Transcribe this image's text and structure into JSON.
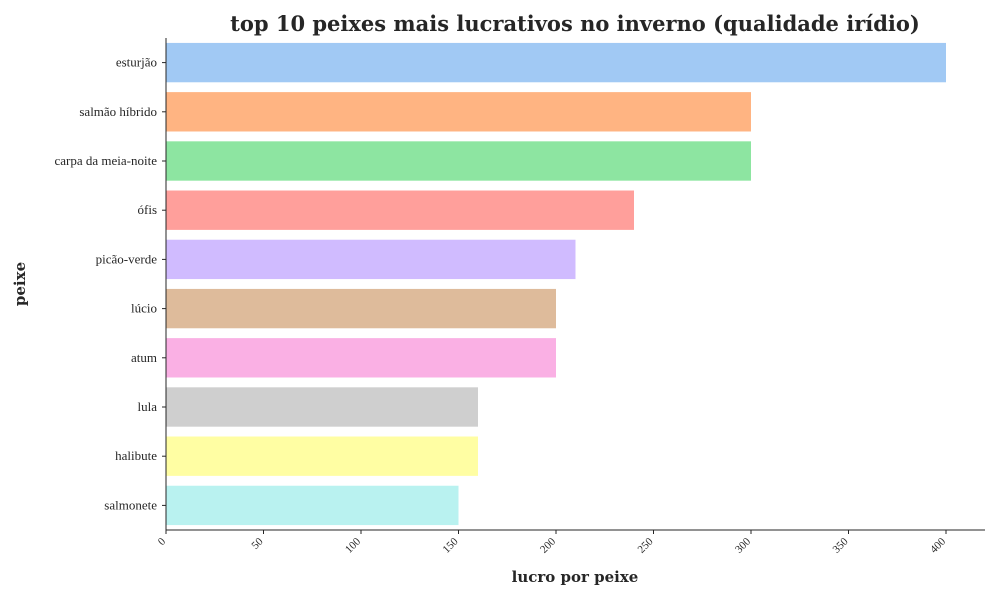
{
  "chart_data": {
    "type": "bar",
    "orientation": "horizontal",
    "title": "top 10 peixes mais lucrativos no inverno (qualidade irídio)",
    "xlabel": "lucro por peixe",
    "ylabel": "peixe",
    "categories": [
      "esturjão",
      "salmão híbrido",
      "carpa da meia-noite",
      "ófis",
      "picão-verde",
      "lúcio",
      "atum",
      "lula",
      "halibute",
      "salmonete"
    ],
    "values": [
      400,
      300,
      300,
      240,
      210,
      200,
      200,
      160,
      160,
      150
    ],
    "colors": [
      "#a1c9f4",
      "#ffb482",
      "#8de5a1",
      "#ff9f9b",
      "#d0bbff",
      "#debb9b",
      "#fab0e4",
      "#cfcfcf",
      "#fffea3",
      "#b9f2f0"
    ],
    "xlim": [
      0,
      420
    ],
    "xticks": [
      "0",
      "50",
      "100",
      "150",
      "200",
      "250",
      "300",
      "350",
      "400"
    ],
    "grid": false,
    "legend": "none"
  }
}
